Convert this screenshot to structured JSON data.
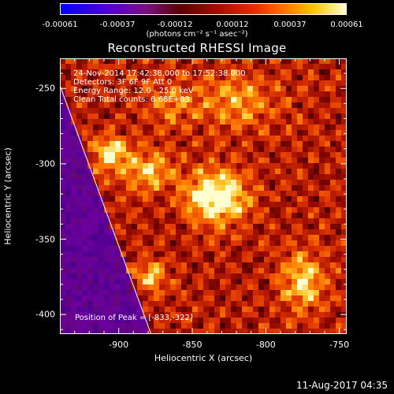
{
  "colorbar": {
    "ticks": [
      "-0.00061",
      "-0.00037",
      "-0.00012",
      "0.00012",
      "0.00037",
      "0.00061"
    ],
    "unit": "(photons cm⁻² s⁻¹ asec⁻²)"
  },
  "title": "Reconstructed RHESSI Image",
  "annotations": {
    "line1": "24-Nov-2014 17:42:38.000 to 17:52:38.000",
    "line2": "Detectors: 3F 6F 9F  Att 0",
    "line3": "Energy Range: 12.0 - 25.0 keV",
    "line4": "Clean     Total counts: 6.68E+03",
    "peak": "Position of Peak = [-833,-322]"
  },
  "footer": "11-Aug-2017 04:35",
  "chart_data": {
    "type": "heatmap",
    "title": "Reconstructed RHESSI Image",
    "xlabel": "Heliocentric X (arcsec)",
    "ylabel": "Heliocentric Y (arcsec)",
    "xlim": [
      -940,
      -745
    ],
    "ylim": [
      -413,
      -230
    ],
    "x_ticks": [
      -900,
      -850,
      -800,
      -750
    ],
    "y_ticks": [
      -250,
      -300,
      -350,
      -400
    ],
    "x_tick_labels": [
      "-900",
      "-850",
      "-800",
      "-750"
    ],
    "y_tick_labels": [
      "-250",
      "-300",
      "-350",
      "-400"
    ],
    "colorbar_range": [
      -0.00061,
      0.00061
    ],
    "peak": {
      "x": -833,
      "y": -322
    },
    "limb_line": [
      {
        "x": -940,
        "y": -248
      },
      {
        "x": -878,
        "y": -413
      }
    ],
    "sources": [
      {
        "x": -833,
        "y": -322,
        "amp": 1.0,
        "sx": 14,
        "sy": 12
      },
      {
        "x": -905,
        "y": -293,
        "amp": 0.75,
        "sx": 8,
        "sy": 8
      },
      {
        "x": -880,
        "y": -305,
        "amp": 0.55,
        "sx": 12,
        "sy": 10
      },
      {
        "x": -775,
        "y": -378,
        "amp": 0.65,
        "sx": 10,
        "sy": 14
      },
      {
        "x": -878,
        "y": -375,
        "amp": 0.5,
        "sx": 8,
        "sy": 8
      },
      {
        "x": -820,
        "y": -258,
        "amp": 0.45,
        "sx": 20,
        "sy": 12
      },
      {
        "x": -865,
        "y": -260,
        "amp": 0.35,
        "sx": 12,
        "sy": 10
      }
    ]
  }
}
